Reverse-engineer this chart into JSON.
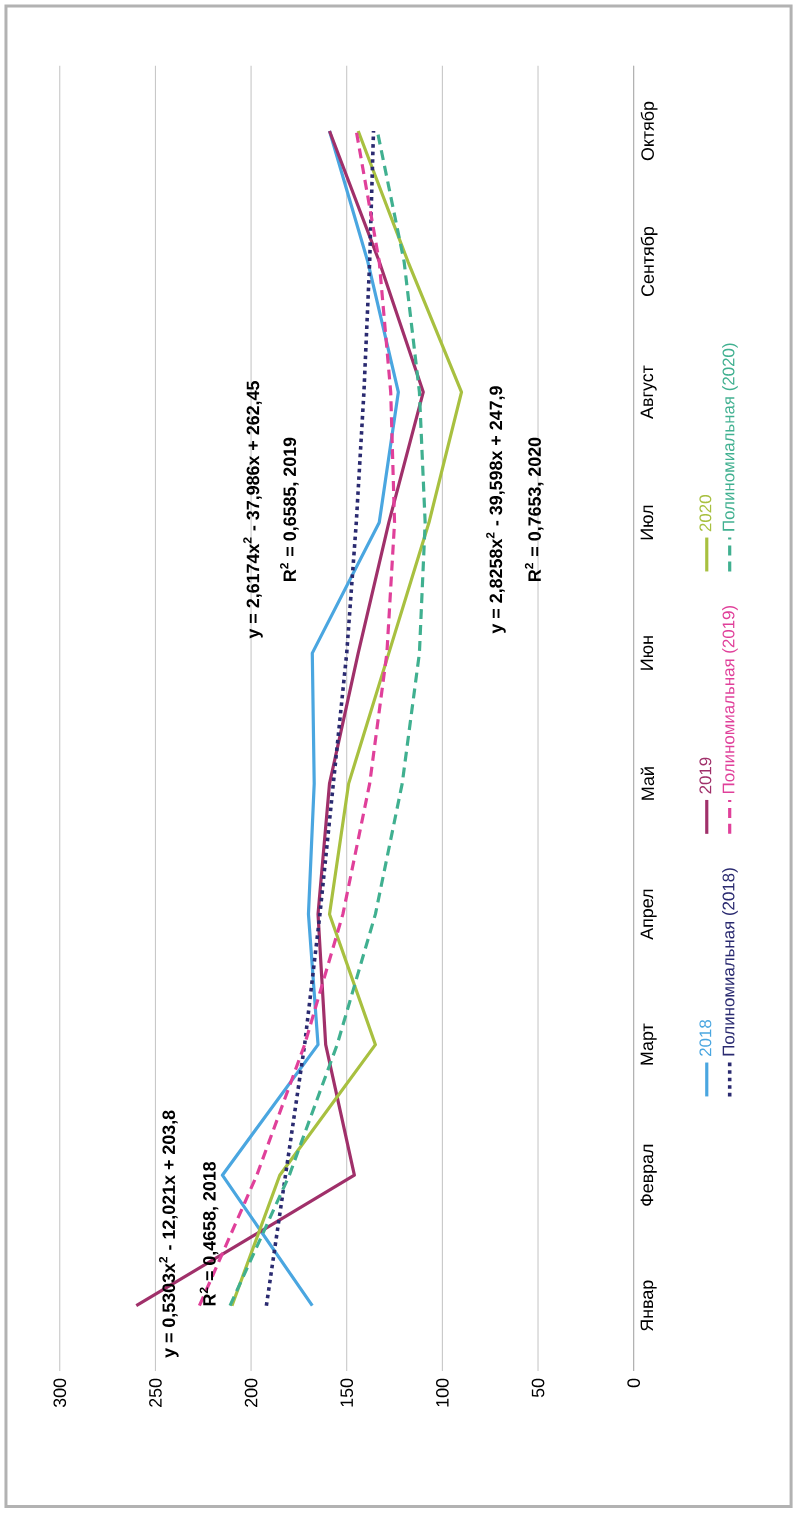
{
  "chart_data": {
    "type": "line",
    "orientation": "horizontal",
    "categories": [
      "Октябр",
      "Сентябр",
      "Август",
      "Июл",
      "Июн",
      "Май",
      "Апрел",
      "Март",
      "Феврал",
      "Январ"
    ],
    "series": [
      {
        "name": "2018",
        "color": "#4aa6e0",
        "line_style": "solid",
        "values": [
          159,
          139,
          123,
          133,
          168,
          167,
          170,
          165,
          215,
          168
        ]
      },
      {
        "name": "2019",
        "color": "#a0306a",
        "line_style": "solid",
        "values": [
          159,
          133,
          110,
          128,
          144,
          159,
          165,
          161,
          146,
          260
        ]
      },
      {
        "name": "2020",
        "color": "#a8c040",
        "line_style": "solid",
        "values": [
          144,
          118,
          90,
          107,
          128,
          149,
          159,
          135,
          185,
          210
        ]
      },
      {
        "name": "Полиномиальная (2018)",
        "color": "#2a2a70",
        "line_style": "dotted",
        "values": [
          136,
          138,
          141,
          145,
          150,
          157,
          164,
          172,
          182,
          192
        ]
      },
      {
        "name": "Полиномиальная (2019)",
        "color": "#e0409a",
        "line_style": "dashed",
        "values": [
          145,
          133,
          127,
          125,
          129,
          138,
          152,
          172,
          197,
          227
        ]
      },
      {
        "name": "Полиномиальная (2020)",
        "color": "#40b090",
        "line_style": "dashed",
        "values": [
          134,
          120,
          112,
          109,
          112,
          121,
          135,
          155,
          180,
          211
        ]
      }
    ],
    "xlim": [
      300,
      0
    ],
    "xticks": [
      300,
      250,
      200,
      150,
      100,
      50,
      0
    ],
    "grid": "x",
    "legend": "right",
    "annotations": [
      "y = 0,5303x$^{2}$ - 12,021x + 203,8",
      "R$^{2}$ = 0,4658, 2018",
      "y = 2,6174x$^{2}$ - 37,986x + 262,45",
      "R$^{2}$ = 0,6585, 2019",
      "y = 2,8258x$^{2}$ - 39,598x + 247,9",
      "R$^{2}$ = 0,7653, 2020"
    ]
  }
}
